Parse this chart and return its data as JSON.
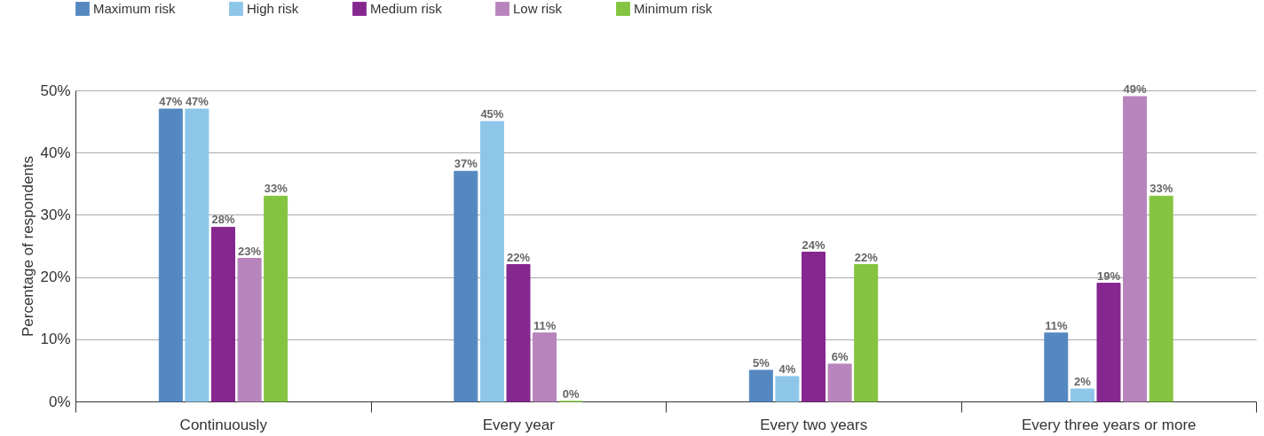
{
  "chart_data": {
    "type": "bar",
    "ylabel": "Percentage of respondents",
    "categories": [
      "Continuously",
      "Every year",
      "Every two years",
      "Every three years or more"
    ],
    "series": [
      {
        "name": "Maximum risk",
        "color": "#5588c0",
        "values": [
          47,
          37,
          5,
          11
        ],
        "value_labels": [
          "47%",
          "37%",
          "5%",
          "11%"
        ]
      },
      {
        "name": "High risk",
        "color": "#8ec6ea",
        "values": [
          47,
          45,
          4,
          2
        ],
        "value_labels": [
          "47%",
          "45%",
          "4%",
          "2%"
        ]
      },
      {
        "name": "Medium risk",
        "color": "#86278f",
        "values": [
          28,
          22,
          24,
          19
        ],
        "value_labels": [
          "28%",
          "22%",
          "24%",
          "19%"
        ]
      },
      {
        "name": "Low risk",
        "color": "#b784bc",
        "values": [
          23,
          11,
          6,
          49
        ],
        "value_labels": [
          "23%",
          "11%",
          "6%",
          "49%"
        ]
      },
      {
        "name": "Minimum risk",
        "color": "#84c440",
        "values": [
          33,
          0,
          22,
          33
        ],
        "value_labels": [
          "33%",
          "0%",
          "22%",
          "33%"
        ]
      }
    ],
    "ylim": [
      0,
      50
    ],
    "yticks": [
      {
        "value": 0,
        "label": "0%"
      },
      {
        "value": 10,
        "label": "10%"
      },
      {
        "value": 20,
        "label": "20%"
      },
      {
        "value": 30,
        "label": "30%"
      },
      {
        "value": 40,
        "label": "40%"
      },
      {
        "value": 50,
        "label": "50%"
      }
    ],
    "grid": "y",
    "legend": "top left"
  }
}
